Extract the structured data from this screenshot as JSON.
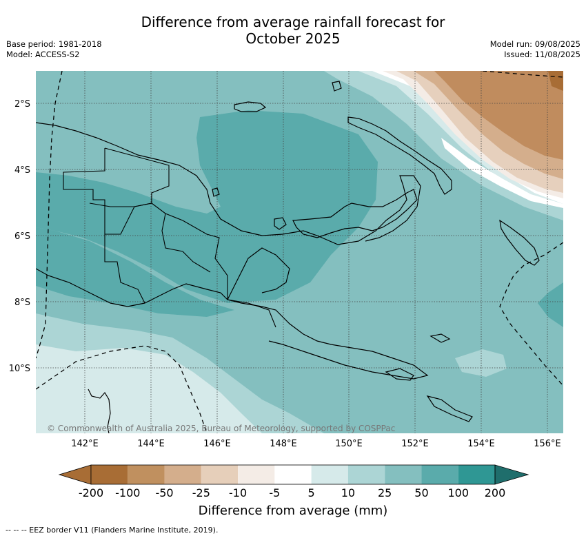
{
  "title_line1": "Difference from average rainfall forecast for",
  "title_line2": "October 2025",
  "meta_left": {
    "base_period": "Base period: 1981-2018",
    "model": "Model: ACCESS-S2"
  },
  "meta_right": {
    "model_run": "Model run: 09/08/2025",
    "issued": "Issued: 11/08/2025"
  },
  "latitude_labels": [
    "2°S",
    "4°S",
    "6°S",
    "8°S",
    "10°S"
  ],
  "longitude_labels": [
    "142°E",
    "144°E",
    "146°E",
    "148°E",
    "150°E",
    "152°E",
    "154°E",
    "156°E"
  ],
  "copyright": "© Commonwealth of Australia 2025, Bureau of Meteorology, supported by COSPPac",
  "colorbar": {
    "title": "Difference from average (mm)",
    "labels": [
      "-200",
      "-100",
      "-50",
      "-25",
      "-10",
      "-5",
      "5",
      "10",
      "25",
      "50",
      "100",
      "200"
    ],
    "colors": [
      "#a86d35",
      "#c0905f",
      "#d4ae8c",
      "#e6cfba",
      "#f4ecE6",
      "#ffffff",
      "#d6eaea",
      "#acd5d5",
      "#84bfbf",
      "#5aabab",
      "#2f9794",
      "#1f6e6c"
    ]
  },
  "footer": "--  --  -- EEZ border V11 (Flanders Marine Institute, 2019).",
  "map_colors": {
    "strong_dry": "#c08c5e",
    "mid_dry": "#d4ae8c",
    "light_dry": "#e6d0bd",
    "very_light_dry": "#f4ece6",
    "neutral": "#ffffff",
    "light_wet": "#d6eaea",
    "wet_10_25": "#acd5d5",
    "wet_25_50": "#84bfbf",
    "wet_50_100": "#5aabab"
  }
}
